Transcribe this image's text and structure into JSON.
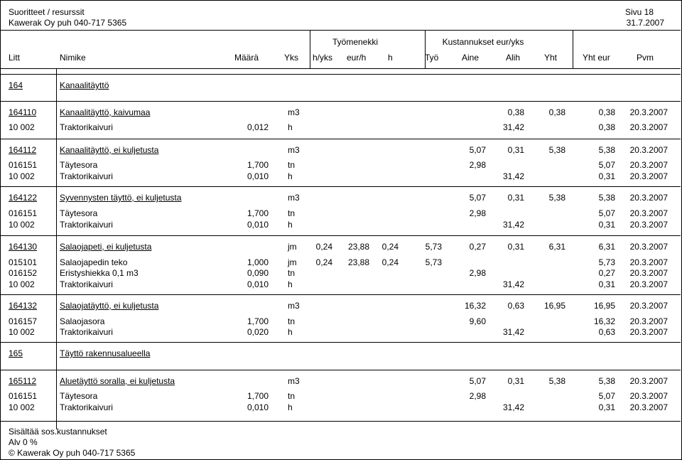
{
  "header": {
    "title": "Suoritteet / resurssit",
    "company": "Kawerak Oy puh 040-717 5365",
    "page": "Sivu 18",
    "date": "31.7.2007"
  },
  "column_groups": {
    "labor": "Työmenekki",
    "costs": "Kustannukset eur/yks"
  },
  "columns": [
    "Litt",
    "Nimike",
    "Määrä",
    "Yks",
    "h/yks",
    "eur/h",
    "h",
    "Työ",
    "Aine",
    "Alih",
    "Yht",
    "Yht eur",
    "Pvm"
  ],
  "rows": [
    {
      "kind": "section",
      "code": "164",
      "name": "Kanaalitäyttö"
    },
    {
      "kind": "item",
      "code": "164110",
      "name": "Kanaalitäyttö, kaivumaa",
      "maara": "",
      "yks": "m3",
      "hyks": "",
      "eurh": "",
      "h": "",
      "tyo": "",
      "aine": "",
      "alih": "0,38",
      "yht": "0,38",
      "yhteur": "0,38",
      "pvm": "20.3.2007"
    },
    {
      "kind": "sub",
      "code": "10 002",
      "name": "Traktorikaivuri",
      "maara": "0,012",
      "yks": "h",
      "hyks": "",
      "eurh": "",
      "h": "",
      "tyo": "",
      "aine": "",
      "alih": "31,42",
      "yht": "",
      "yhteur": "0,38",
      "pvm": "20.3.2007"
    },
    {
      "kind": "item",
      "code": "164112",
      "name": "Kanaalitäyttö, ei kuljetusta",
      "maara": "",
      "yks": "m3",
      "hyks": "",
      "eurh": "",
      "h": "",
      "tyo": "",
      "aine": "5,07",
      "alih": "0,31",
      "yht": "5,38",
      "yhteur": "5,38",
      "pvm": "20.3.2007"
    },
    {
      "kind": "sub",
      "code": "016151",
      "name": "Täytesora",
      "maara": "1,700",
      "yks": "tn",
      "hyks": "",
      "eurh": "",
      "h": "",
      "tyo": "",
      "aine": "2,98",
      "alih": "",
      "yht": "",
      "yhteur": "5,07",
      "pvm": "20.3.2007"
    },
    {
      "kind": "sub",
      "code": "10 002",
      "name": "Traktorikaivuri",
      "maara": "0,010",
      "yks": "h",
      "hyks": "",
      "eurh": "",
      "h": "",
      "tyo": "",
      "aine": "",
      "alih": "31,42",
      "yht": "",
      "yhteur": "0,31",
      "pvm": "20.3.2007"
    },
    {
      "kind": "item",
      "code": "164122",
      "name": "Syvennysten täyttö, ei kuljetusta",
      "maara": "",
      "yks": "m3",
      "hyks": "",
      "eurh": "",
      "h": "",
      "tyo": "",
      "aine": "5,07",
      "alih": "0,31",
      "yht": "5,38",
      "yhteur": "5,38",
      "pvm": "20.3.2007"
    },
    {
      "kind": "sub",
      "code": "016151",
      "name": "Täytesora",
      "maara": "1,700",
      "yks": "tn",
      "hyks": "",
      "eurh": "",
      "h": "",
      "tyo": "",
      "aine": "2,98",
      "alih": "",
      "yht": "",
      "yhteur": "5,07",
      "pvm": "20.3.2007"
    },
    {
      "kind": "sub",
      "code": "10 002",
      "name": "Traktorikaivuri",
      "maara": "0,010",
      "yks": "h",
      "hyks": "",
      "eurh": "",
      "h": "",
      "tyo": "",
      "aine": "",
      "alih": "31,42",
      "yht": "",
      "yhteur": "0,31",
      "pvm": "20.3.2007"
    },
    {
      "kind": "item",
      "code": "164130",
      "name": "Salaojapeti, ei kuljetusta",
      "maara": "",
      "yks": "jm",
      "hyks": "0,24",
      "eurh": "23,88",
      "h": "0,24",
      "tyo": "5,73",
      "aine": "0,27",
      "alih": "0,31",
      "yht": "6,31",
      "yhteur": "6,31",
      "pvm": "20.3.2007"
    },
    {
      "kind": "sub",
      "code": "015101",
      "name": "Salaojapedin teko",
      "maara": "1,000",
      "yks": "jm",
      "hyks": "0,24",
      "eurh": "23,88",
      "h": "0,24",
      "tyo": "5,73",
      "aine": "",
      "alih": "",
      "yht": "",
      "yhteur": "5,73",
      "pvm": "20.3.2007"
    },
    {
      "kind": "sub",
      "code": "016152",
      "name": "Eristyshiekka 0,1 m3",
      "maara": "0,090",
      "yks": "tn",
      "hyks": "",
      "eurh": "",
      "h": "",
      "tyo": "",
      "aine": "2,98",
      "alih": "",
      "yht": "",
      "yhteur": "0,27",
      "pvm": "20.3.2007"
    },
    {
      "kind": "sub",
      "code": "10 002",
      "name": "Traktorikaivuri",
      "maara": "0,010",
      "yks": "h",
      "hyks": "",
      "eurh": "",
      "h": "",
      "tyo": "",
      "aine": "",
      "alih": "31,42",
      "yht": "",
      "yhteur": "0,31",
      "pvm": "20.3.2007"
    },
    {
      "kind": "item",
      "code": "164132",
      "name": "Salaojatäyttö, ei kuljetusta",
      "maara": "",
      "yks": "m3",
      "hyks": "",
      "eurh": "",
      "h": "",
      "tyo": "",
      "aine": "16,32",
      "alih": "0,63",
      "yht": "16,95",
      "yhteur": "16,95",
      "pvm": "20.3.2007"
    },
    {
      "kind": "sub",
      "code": "016157",
      "name": "Salaojasora",
      "maara": "1,700",
      "yks": "tn",
      "hyks": "",
      "eurh": "",
      "h": "",
      "tyo": "",
      "aine": "9,60",
      "alih": "",
      "yht": "",
      "yhteur": "16,32",
      "pvm": "20.3.2007"
    },
    {
      "kind": "sub",
      "code": "10 002",
      "name": "Traktorikaivuri",
      "maara": "0,020",
      "yks": "h",
      "hyks": "",
      "eurh": "",
      "h": "",
      "tyo": "",
      "aine": "",
      "alih": "31,42",
      "yht": "",
      "yhteur": "0,63",
      "pvm": "20.3.2007"
    },
    {
      "kind": "section",
      "code": "165",
      "name": "Täyttö rakennusalueella"
    },
    {
      "kind": "item",
      "code": "165112",
      "name": "Aluetäyttö soralla, ei kuljetusta",
      "maara": "",
      "yks": "m3",
      "hyks": "",
      "eurh": "",
      "h": "",
      "tyo": "",
      "aine": "5,07",
      "alih": "0,31",
      "yht": "5,38",
      "yhteur": "5,38",
      "pvm": "20.3.2007"
    },
    {
      "kind": "sub",
      "code": "016151",
      "name": "Täytesora",
      "maara": "1,700",
      "yks": "tn",
      "hyks": "",
      "eurh": "",
      "h": "",
      "tyo": "",
      "aine": "2,98",
      "alih": "",
      "yht": "",
      "yhteur": "5,07",
      "pvm": "20.3.2007"
    },
    {
      "kind": "sub",
      "code": "10 002",
      "name": "Traktorikaivuri",
      "maara": "0,010",
      "yks": "h",
      "hyks": "",
      "eurh": "",
      "h": "",
      "tyo": "",
      "aine": "",
      "alih": "31,42",
      "yht": "",
      "yhteur": "0,31",
      "pvm": "20.3.2007"
    }
  ],
  "footer": {
    "line1": "Sisältää sos.kustannukset",
    "line2": "Alv 0 %",
    "copyright": "©  Kawerak Oy puh 040-717 5365"
  }
}
